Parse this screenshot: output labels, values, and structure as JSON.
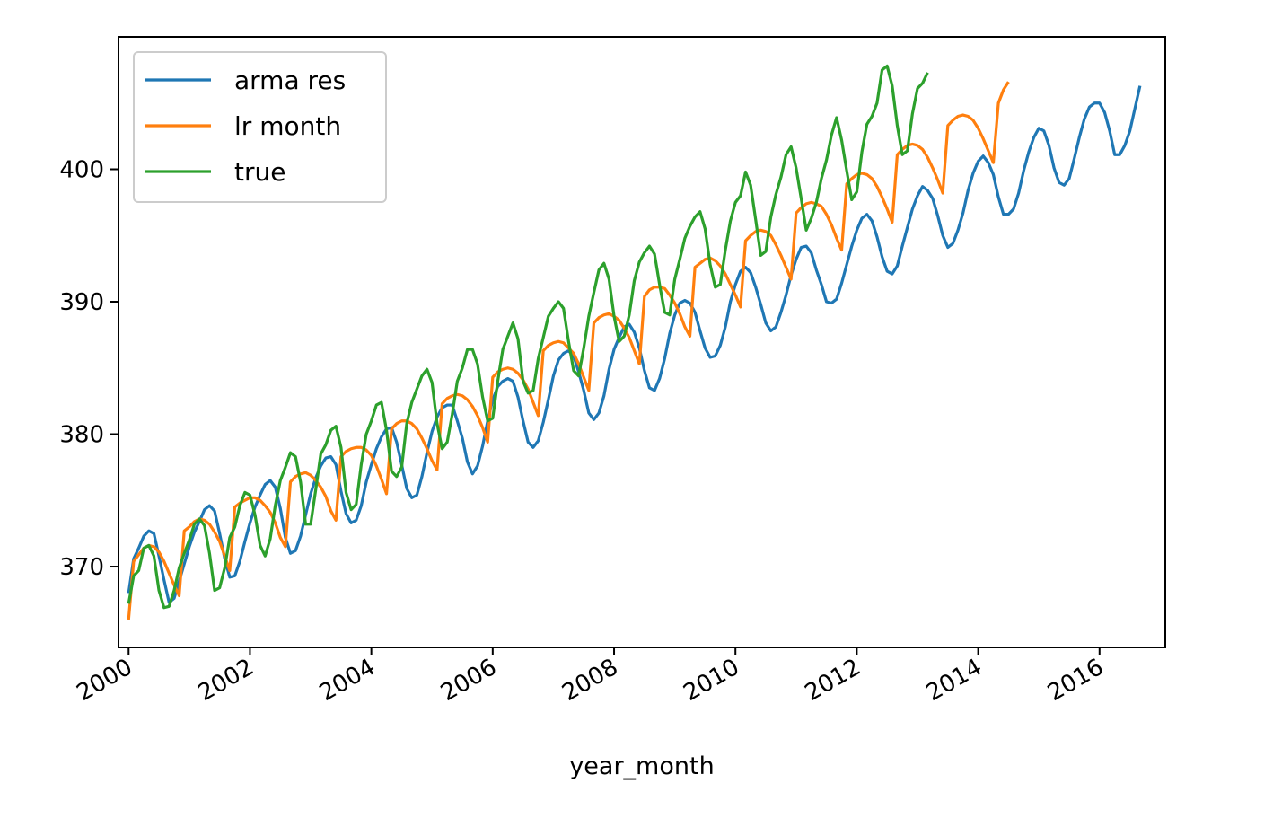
{
  "chart_data": {
    "type": "line",
    "title": "",
    "xlabel": "year_month",
    "ylabel": "",
    "xlim": [
      "1999-11",
      "2017-02"
    ],
    "ylim": [
      363.9,
      410.0
    ],
    "x_ticks": [
      "2000",
      "2002",
      "2004",
      "2006",
      "2008",
      "2010",
      "2012",
      "2014",
      "2016"
    ],
    "y_ticks": [
      "370",
      "380",
      "390",
      "400"
    ],
    "grid": false,
    "legend_position": "top-left",
    "x_start": "2000-01",
    "x_step": "1 month",
    "series": [
      {
        "name": "arma res",
        "color": "#1f77b4",
        "values": [
          368.0,
          370.6,
          371.4,
          372.3,
          372.7,
          372.5,
          370.8,
          369.0,
          367.3,
          367.6,
          368.9,
          370.2,
          371.5,
          372.6,
          373.4,
          374.3,
          374.6,
          374.2,
          372.5,
          370.6,
          369.2,
          369.3,
          370.4,
          371.9,
          373.3,
          374.5,
          375.4,
          376.2,
          376.5,
          376.0,
          374.4,
          372.2,
          371.0,
          371.2,
          372.3,
          373.9,
          375.5,
          376.7,
          377.6,
          378.2,
          378.3,
          377.7,
          375.7,
          374.0,
          373.3,
          373.5,
          374.6,
          376.4,
          377.7,
          378.9,
          379.8,
          380.4,
          380.5,
          379.4,
          377.7,
          375.9,
          375.2,
          375.4,
          376.8,
          378.6,
          380.2,
          381.3,
          382.0,
          382.2,
          382.2,
          381.0,
          379.7,
          377.9,
          377.0,
          377.6,
          379.1,
          381.0,
          382.6,
          383.6,
          384.0,
          384.2,
          384.0,
          382.8,
          381.0,
          379.4,
          379.0,
          379.5,
          380.9,
          382.6,
          384.4,
          385.6,
          386.1,
          386.3,
          385.9,
          384.7,
          383.3,
          381.6,
          381.1,
          381.6,
          382.9,
          384.9,
          386.4,
          387.3,
          388.1,
          388.3,
          387.7,
          386.5,
          384.8,
          383.5,
          383.3,
          384.2,
          385.7,
          387.6,
          389.0,
          389.9,
          390.1,
          389.9,
          389.2,
          387.8,
          386.5,
          385.8,
          385.9,
          386.7,
          388.1,
          390.0,
          391.3,
          392.3,
          392.6,
          392.2,
          391.1,
          389.8,
          388.4,
          387.8,
          388.1,
          389.2,
          390.5,
          392.0,
          393.2,
          394.1,
          394.2,
          393.7,
          392.4,
          391.3,
          390.0,
          389.9,
          390.2,
          391.4,
          392.8,
          394.2,
          395.4,
          396.3,
          396.6,
          396.1,
          394.9,
          393.4,
          392.3,
          392.1,
          392.7,
          394.2,
          395.6,
          397.0,
          398.0,
          398.7,
          398.4,
          397.8,
          396.5,
          395.0,
          394.1,
          394.4,
          395.4,
          396.7,
          398.4,
          399.7,
          400.6,
          401.0,
          400.5,
          399.6,
          397.9,
          396.6,
          396.6,
          397.0,
          398.2,
          399.9,
          401.3,
          402.4,
          403.1,
          402.9,
          401.8,
          400.1,
          399.0,
          398.8,
          399.3,
          400.8,
          402.4,
          403.8,
          404.7,
          405.0,
          405.0,
          404.3,
          402.9,
          401.1,
          401.1,
          401.8,
          402.9,
          404.6,
          406.3
        ]
      },
      {
        "name": "lr month",
        "color": "#ff7f0e",
        "values": [
          366.0,
          370.4,
          370.9,
          371.4,
          371.6,
          371.5,
          371.1,
          370.4,
          369.5,
          368.6,
          367.8,
          372.7,
          373.0,
          373.4,
          373.6,
          373.5,
          373.2,
          372.6,
          371.9,
          370.8,
          369.7,
          374.5,
          374.8,
          375.0,
          375.2,
          375.2,
          375.0,
          374.6,
          374.1,
          373.3,
          372.2,
          371.5,
          376.4,
          376.8,
          377.0,
          377.1,
          376.9,
          376.5,
          376.0,
          375.3,
          374.2,
          373.5,
          378.3,
          378.7,
          378.9,
          379.0,
          379.0,
          378.8,
          378.4,
          377.6,
          376.6,
          375.5,
          380.4,
          380.8,
          381.0,
          381.0,
          380.8,
          380.4,
          379.7,
          378.9,
          378.0,
          377.3,
          382.3,
          382.7,
          382.9,
          383.0,
          382.9,
          382.6,
          382.1,
          381.4,
          380.5,
          379.4,
          384.3,
          384.7,
          384.9,
          385.0,
          384.9,
          384.6,
          384.1,
          383.4,
          382.4,
          381.4,
          386.3,
          386.7,
          386.9,
          387.0,
          386.9,
          386.5,
          386.1,
          385.3,
          384.3,
          383.3,
          388.4,
          388.8,
          389.0,
          389.1,
          388.9,
          388.6,
          388.0,
          387.3,
          386.3,
          385.3,
          390.4,
          390.9,
          391.1,
          391.1,
          391.0,
          390.5,
          389.9,
          389.1,
          388.1,
          387.4,
          392.6,
          392.9,
          393.2,
          393.3,
          393.1,
          392.7,
          392.1,
          391.3,
          390.5,
          389.6,
          394.6,
          395.0,
          395.3,
          395.4,
          395.3,
          395.0,
          394.3,
          393.5,
          392.6,
          391.7,
          396.7,
          397.1,
          397.4,
          397.5,
          397.4,
          397.2,
          396.6,
          395.8,
          394.8,
          393.9,
          398.9,
          399.3,
          399.6,
          399.7,
          399.6,
          399.3,
          398.7,
          397.9,
          397.0,
          396.0,
          401.1,
          401.5,
          401.8,
          401.9,
          401.8,
          401.5,
          400.9,
          400.1,
          399.2,
          398.2,
          403.3,
          403.7,
          404.0,
          404.1,
          404.0,
          403.7,
          403.1,
          402.3,
          401.4,
          400.5,
          405.0,
          406.0,
          406.6
        ]
      },
      {
        "name": "true",
        "color": "#2ca02c",
        "values": [
          367.2,
          369.3,
          369.7,
          371.4,
          371.6,
          370.8,
          368.2,
          366.9,
          367.0,
          368.2,
          369.9,
          371.0,
          372.0,
          373.2,
          373.6,
          373.1,
          371.0,
          368.2,
          368.4,
          369.9,
          372.2,
          373.0,
          374.6,
          375.6,
          375.4,
          373.9,
          371.6,
          370.8,
          372.1,
          374.6,
          376.5,
          377.5,
          378.6,
          378.3,
          376.4,
          373.2,
          373.2,
          375.8,
          378.5,
          379.2,
          380.3,
          380.6,
          379.0,
          375.6,
          374.3,
          374.7,
          377.7,
          380.0,
          381.0,
          382.2,
          382.4,
          380.3,
          377.2,
          376.8,
          377.5,
          380.8,
          382.4,
          383.4,
          384.4,
          384.9,
          383.9,
          380.8,
          378.9,
          379.4,
          381.5,
          384.0,
          385.0,
          386.4,
          386.4,
          385.3,
          382.8,
          381.0,
          381.2,
          384.0,
          386.4,
          387.4,
          388.4,
          387.2,
          384.0,
          383.1,
          383.3,
          385.7,
          387.3,
          388.9,
          389.5,
          390.0,
          389.5,
          387.0,
          384.8,
          384.4,
          386.5,
          388.9,
          390.7,
          392.4,
          392.9,
          391.7,
          388.9,
          387.0,
          387.4,
          389.0,
          391.6,
          393.0,
          393.7,
          394.2,
          393.6,
          391.3,
          389.2,
          389.0,
          391.7,
          393.2,
          394.8,
          395.7,
          396.4,
          396.8,
          395.5,
          392.8,
          391.1,
          391.3,
          393.9,
          396.1,
          397.5,
          398.0,
          399.8,
          398.8,
          396.2,
          393.5,
          393.8,
          396.4,
          398.1,
          399.4,
          401.1,
          401.7,
          400.1,
          397.8,
          395.4,
          396.3,
          397.5,
          399.3,
          400.7,
          402.6,
          403.9,
          402.2,
          399.9,
          397.7,
          398.3,
          401.3,
          403.4,
          404.0,
          405.0,
          407.5,
          407.8,
          406.3,
          403.3,
          401.1,
          401.4,
          404.2,
          406.1,
          406.5,
          407.3
        ]
      }
    ]
  }
}
